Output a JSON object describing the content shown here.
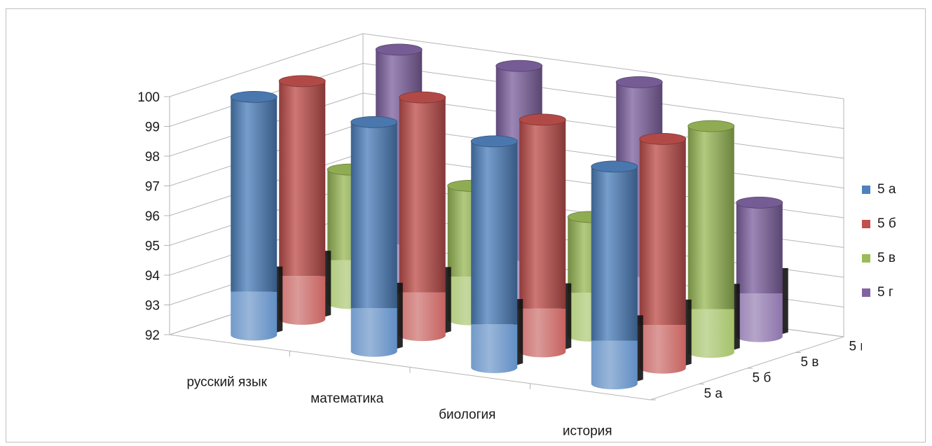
{
  "chart_data": {
    "type": "bar",
    "style": "3d-cylinder",
    "title": "",
    "categories": [
      "русский язык",
      "математика",
      "биология",
      "история"
    ],
    "series": [
      {
        "name": "5 а",
        "color": "#4F81BD",
        "values": [
          100,
          99.7,
          99.6,
          99.3
        ]
      },
      {
        "name": "5 б",
        "color": "#C0504D",
        "values": [
          100,
          100,
          99.8,
          99.7
        ]
      },
      {
        "name": "5 в",
        "color": "#9BBB59",
        "values": [
          96.5,
          96.5,
          96,
          99.6
        ]
      },
      {
        "name": "5 г",
        "color": "#8064A2",
        "values": [
          100,
          100,
          100,
          96.5
        ]
      }
    ],
    "ylim": [
      92,
      100
    ],
    "yticks": [
      "100",
      "99",
      "98",
      "97",
      "96",
      "95",
      "94",
      "93",
      "92"
    ],
    "depth_labels": [
      "5 г",
      "5 в",
      "5 б",
      "5 а"
    ],
    "grid": true,
    "legend_position": "right"
  }
}
